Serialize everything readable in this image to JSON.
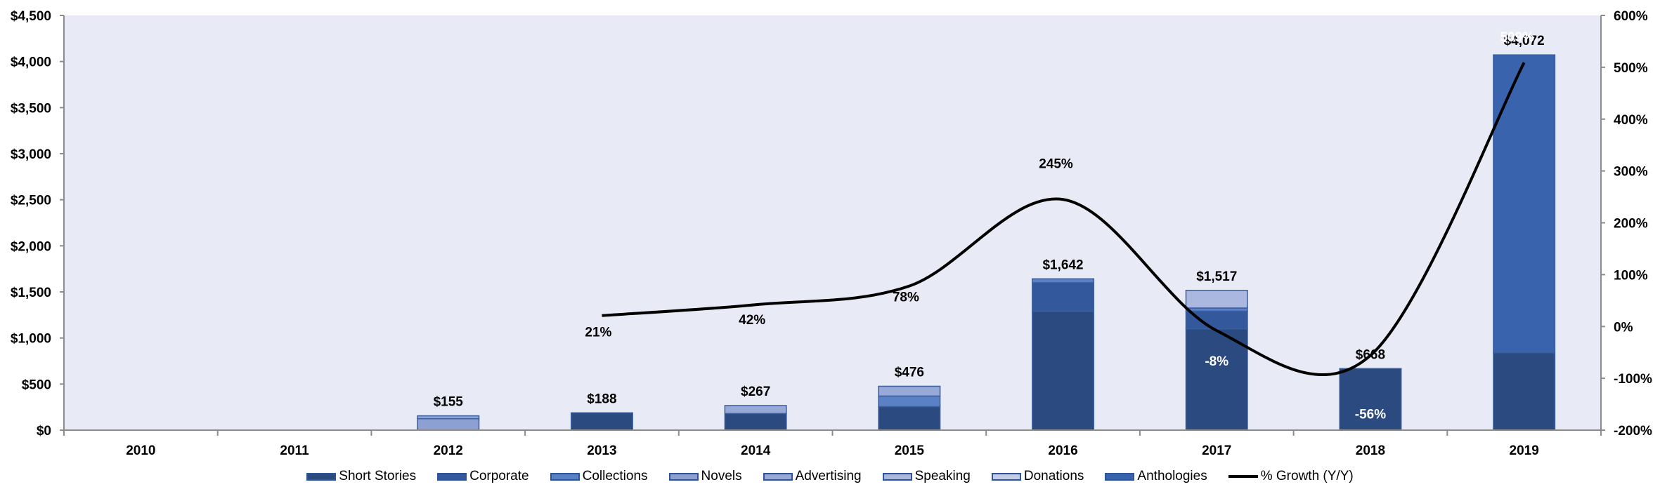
{
  "chart_data": {
    "type": "bar",
    "subtype": "stacked-bar-with-line",
    "title": "",
    "xlabel": "",
    "ylabel": "",
    "categories": [
      "2010",
      "2011",
      "2012",
      "2013",
      "2014",
      "2015",
      "2016",
      "2017",
      "2018",
      "2019"
    ],
    "ylim": [
      0,
      4500
    ],
    "yticks": [
      "$0",
      "$500",
      "$1,000",
      "$1,500",
      "$2,000",
      "$2,500",
      "$3,000",
      "$3,500",
      "$4,000",
      "$4,500"
    ],
    "y2lim": [
      -200,
      600
    ],
    "y2ticks": [
      "-200%",
      "-100%",
      "0%",
      "100%",
      "200%",
      "300%",
      "400%",
      "500%",
      "600%"
    ],
    "grid": false,
    "legend_position": "bottom",
    "series": [
      {
        "name": "Short Stories",
        "color": "#2b4a80",
        "values": [
          0,
          0,
          0,
          188,
          180,
          255,
          1290,
          1100,
          668,
          840
        ]
      },
      {
        "name": "Corporate",
        "color": "#34589c",
        "values": [
          0,
          0,
          0,
          0,
          0,
          0,
          310,
          190,
          0,
          0
        ]
      },
      {
        "name": "Collections",
        "color": "#5a80c6",
        "values": [
          0,
          0,
          0,
          0,
          0,
          115,
          42,
          35,
          0,
          0
        ]
      },
      {
        "name": "Novels",
        "color": "#8da0d2",
        "values": [
          0,
          0,
          125,
          0,
          0,
          0,
          0,
          0,
          0,
          0
        ]
      },
      {
        "name": "Advertising",
        "color": "#98a9d8",
        "values": [
          0,
          0,
          30,
          0,
          87,
          106,
          0,
          0,
          0,
          0
        ]
      },
      {
        "name": "Speaking",
        "color": "#aab7df",
        "values": [
          0,
          0,
          0,
          0,
          0,
          0,
          0,
          192,
          0,
          0
        ]
      },
      {
        "name": "Donations",
        "color": "#c2cce8",
        "values": [
          0,
          0,
          0,
          0,
          0,
          0,
          0,
          0,
          0,
          0
        ]
      },
      {
        "name": "Anthologies",
        "color": "#3a63ad",
        "values": [
          0,
          0,
          0,
          0,
          0,
          0,
          0,
          0,
          0,
          3232
        ]
      }
    ],
    "totals": [
      null,
      null,
      155,
      188,
      267,
      476,
      1642,
      1517,
      668,
      4072
    ],
    "total_labels": [
      "",
      "",
      "$155",
      "$188",
      "$267",
      "$476",
      "$1,642",
      "$1,517",
      "$668",
      "$4,072"
    ],
    "line_series": {
      "name": "% Growth (Y/Y)",
      "color": "#000000",
      "axis": "secondary",
      "values": [
        null,
        null,
        null,
        21,
        42,
        78,
        245,
        -8,
        -56,
        509
      ],
      "labels": [
        "",
        "",
        "",
        "21%",
        "42%",
        "78%",
        "245%",
        "-8%",
        "-56%",
        "509%"
      ]
    }
  },
  "legend": {
    "items": [
      {
        "label": "Short Stories",
        "color": "#2b4a80",
        "kind": "box"
      },
      {
        "label": "Corporate",
        "color": "#34589c",
        "kind": "box"
      },
      {
        "label": "Collections",
        "color": "#5a80c6",
        "kind": "box"
      },
      {
        "label": "Novels",
        "color": "#8da0d2",
        "kind": "box"
      },
      {
        "label": "Advertising",
        "color": "#98a9d8",
        "kind": "box"
      },
      {
        "label": "Speaking",
        "color": "#aab7df",
        "kind": "box"
      },
      {
        "label": "Donations",
        "color": "#c2cce8",
        "kind": "box"
      },
      {
        "label": "Anthologies",
        "color": "#3a63ad",
        "kind": "box"
      },
      {
        "label": "% Growth (Y/Y)",
        "color": "#000000",
        "kind": "line"
      }
    ]
  },
  "colors": {
    "plot_background": "#e8eaf5",
    "axis": "#8c8c8c",
    "bar_border": "#3a5f9e"
  }
}
